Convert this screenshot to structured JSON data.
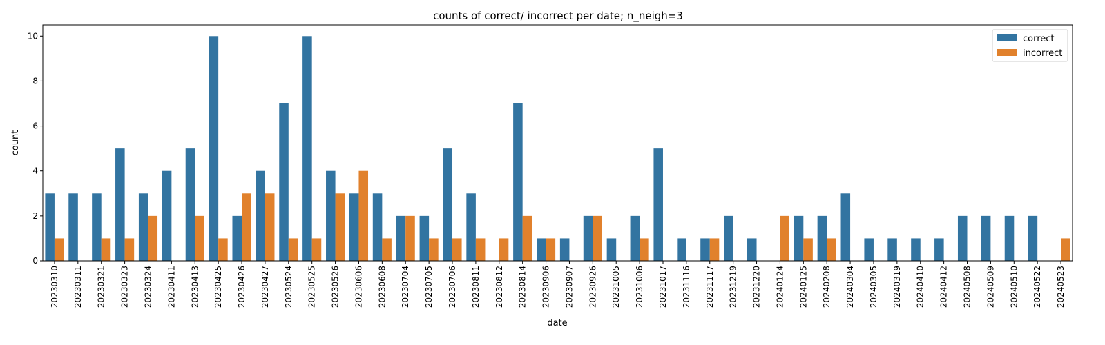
{
  "chart_data": {
    "type": "bar",
    "title": "counts of correct/ incorrect per date; n_neigh=3",
    "xlabel": "date",
    "ylabel": "count",
    "ylim": [
      0,
      10.5
    ],
    "yticks": [
      0,
      2,
      4,
      6,
      8,
      10
    ],
    "legend_placement": "top-right",
    "grid": false,
    "categories": [
      "20230310",
      "20230311",
      "20230321",
      "20230323",
      "20230324",
      "20230411",
      "20230413",
      "20230425",
      "20230426",
      "20230427",
      "20230524",
      "20230525",
      "20230526",
      "20230606",
      "20230608",
      "20230704",
      "20230705",
      "20230706",
      "20230811",
      "20230812",
      "20230814",
      "20230906",
      "20230907",
      "20230926",
      "20231005",
      "20231006",
      "20231017",
      "20231116",
      "20231117",
      "20231219",
      "20231220",
      "20240124",
      "20240125",
      "20240208",
      "20240304",
      "20240305",
      "20240319",
      "20240410",
      "20240412",
      "20240508",
      "20240509",
      "20240510",
      "20240522",
      "20240523"
    ],
    "series": [
      {
        "name": "correct",
        "color": "#3274a1",
        "values": [
          3,
          3,
          3,
          5,
          3,
          4,
          5,
          10,
          2,
          4,
          7,
          10,
          4,
          3,
          3,
          2,
          2,
          5,
          3,
          0,
          7,
          1,
          1,
          2,
          1,
          2,
          5,
          1,
          1,
          2,
          1,
          0,
          2,
          2,
          3,
          1,
          1,
          1,
          1,
          2,
          2,
          2,
          2,
          0
        ]
      },
      {
        "name": "incorrect",
        "color": "#e1812c",
        "values": [
          1,
          0,
          1,
          1,
          2,
          0,
          2,
          1,
          3,
          3,
          1,
          1,
          3,
          4,
          1,
          2,
          1,
          1,
          1,
          1,
          2,
          1,
          0,
          2,
          0,
          1,
          0,
          0,
          1,
          0,
          0,
          2,
          1,
          1,
          0,
          0,
          0,
          0,
          0,
          0,
          0,
          0,
          0,
          1
        ]
      }
    ]
  }
}
